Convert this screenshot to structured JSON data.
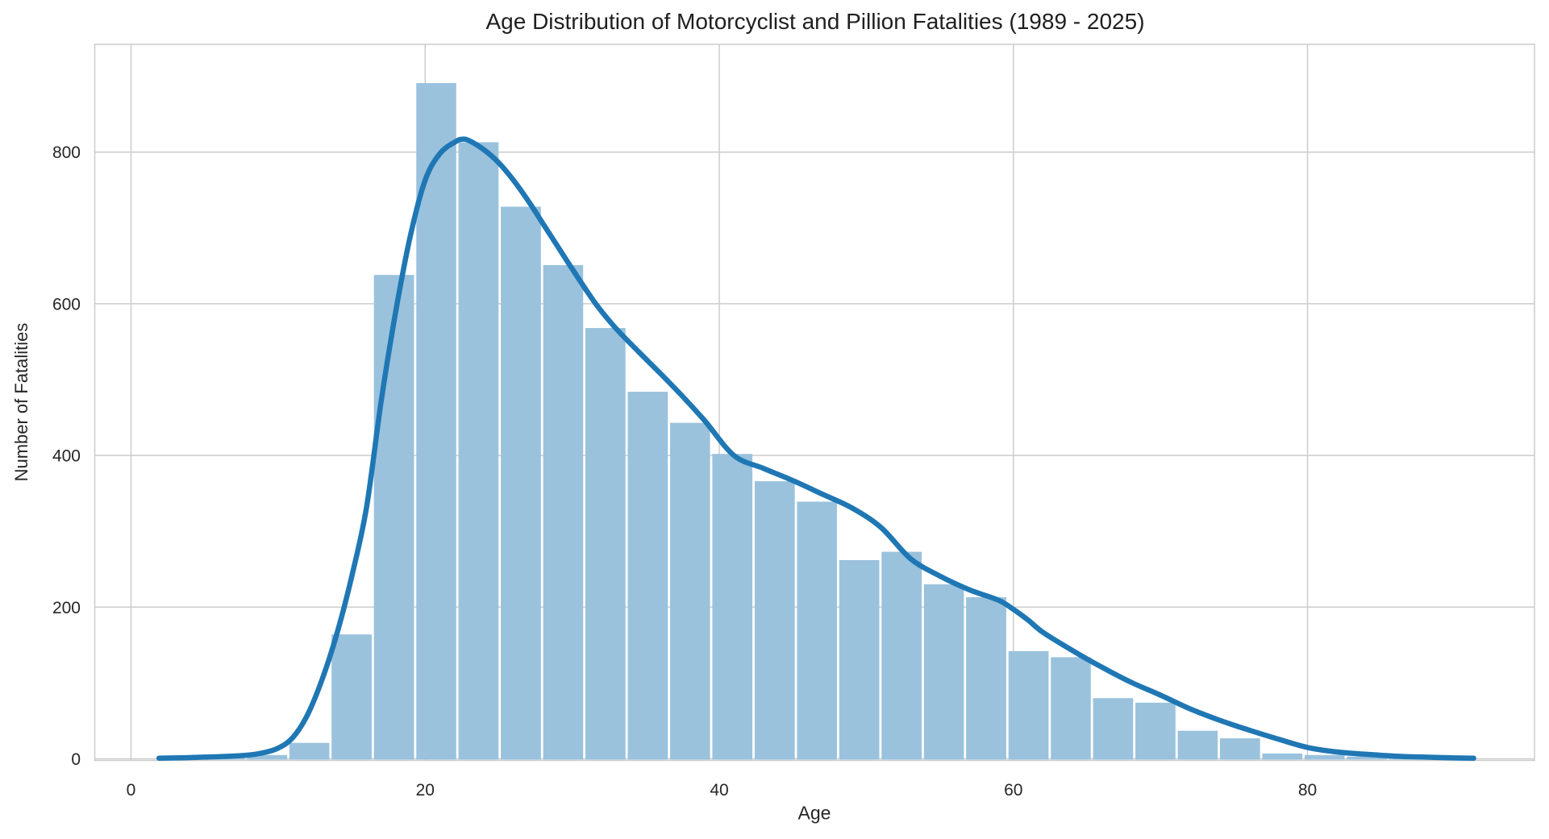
{
  "chart_data": {
    "type": "bar",
    "subtype": "histogram_with_kde",
    "title": "Age Distribution of Motorcyclist and Pillion Fatalities (1989 - 2025)",
    "xlabel": "Age",
    "ylabel": "Number of Fatalities",
    "x_ticks": [
      0,
      20,
      40,
      60,
      80
    ],
    "y_ticks": [
      0,
      200,
      400,
      600,
      800
    ],
    "xlim": [
      -2.5,
      95.4
    ],
    "ylim": [
      0,
      941
    ],
    "grid": true,
    "legend": "none",
    "colors": {
      "bar_fill": "#9ac2dd",
      "kde_line": "#1f77b4",
      "grid_line": "#cccccc",
      "text": "#262626",
      "background": "#ffffff"
    },
    "bin_edges": [
      4.93,
      7.81,
      10.69,
      13.56,
      16.44,
      19.32,
      22.19,
      25.07,
      27.95,
      30.82,
      33.7,
      36.58,
      39.45,
      42.33,
      45.21,
      48.08,
      50.96,
      53.84,
      56.71,
      59.59,
      62.47,
      65.34,
      68.22,
      71.1,
      73.97,
      76.85,
      79.73,
      82.6,
      85.48,
      88.36,
      91.23
    ],
    "counts": [
      2,
      5,
      21,
      164,
      638,
      891,
      813,
      728,
      651,
      568,
      484,
      443,
      402,
      366,
      339,
      262,
      273,
      230,
      213,
      142,
      134,
      80,
      74,
      37,
      27,
      7,
      5,
      3,
      1,
      1
    ],
    "series": [
      {
        "name": "kde-curve",
        "points": [
          [
            1.9,
            0.8
          ],
          [
            3.5,
            1.4
          ],
          [
            5,
            2.2
          ],
          [
            6.5,
            3.2
          ],
          [
            8,
            5
          ],
          [
            9,
            8
          ],
          [
            10,
            14
          ],
          [
            11,
            28
          ],
          [
            12,
            58
          ],
          [
            13,
            105
          ],
          [
            14,
            165
          ],
          [
            15,
            240
          ],
          [
            16,
            330
          ],
          [
            17,
            470
          ],
          [
            18,
            590
          ],
          [
            19,
            690
          ],
          [
            20,
            763
          ],
          [
            21,
            798
          ],
          [
            22,
            813
          ],
          [
            22.5,
            817
          ],
          [
            23,
            815
          ],
          [
            24,
            803
          ],
          [
            25,
            786
          ],
          [
            26,
            763
          ],
          [
            27,
            736
          ],
          [
            28,
            706
          ],
          [
            29,
            676
          ],
          [
            30,
            646
          ],
          [
            31.6,
            600
          ],
          [
            33,
            567
          ],
          [
            34.5,
            537
          ],
          [
            36,
            508
          ],
          [
            37.5,
            478
          ],
          [
            39,
            446
          ],
          [
            41,
            400
          ],
          [
            43,
            383
          ],
          [
            45,
            367
          ],
          [
            47,
            349
          ],
          [
            49,
            331
          ],
          [
            51,
            305
          ],
          [
            53,
            264
          ],
          [
            55,
            241
          ],
          [
            57,
            223
          ],
          [
            59,
            209
          ],
          [
            60,
            197
          ],
          [
            61,
            183
          ],
          [
            62,
            167
          ],
          [
            64,
            143
          ],
          [
            66,
            121
          ],
          [
            68,
            101
          ],
          [
            70,
            84
          ],
          [
            72,
            66
          ],
          [
            74,
            51
          ],
          [
            76,
            38
          ],
          [
            78,
            26
          ],
          [
            80,
            15
          ],
          [
            82,
            9
          ],
          [
            84,
            6
          ],
          [
            86,
            3.5
          ],
          [
            88,
            2.2
          ],
          [
            90,
            1.2
          ],
          [
            91.3,
            0.8
          ]
        ]
      }
    ]
  }
}
